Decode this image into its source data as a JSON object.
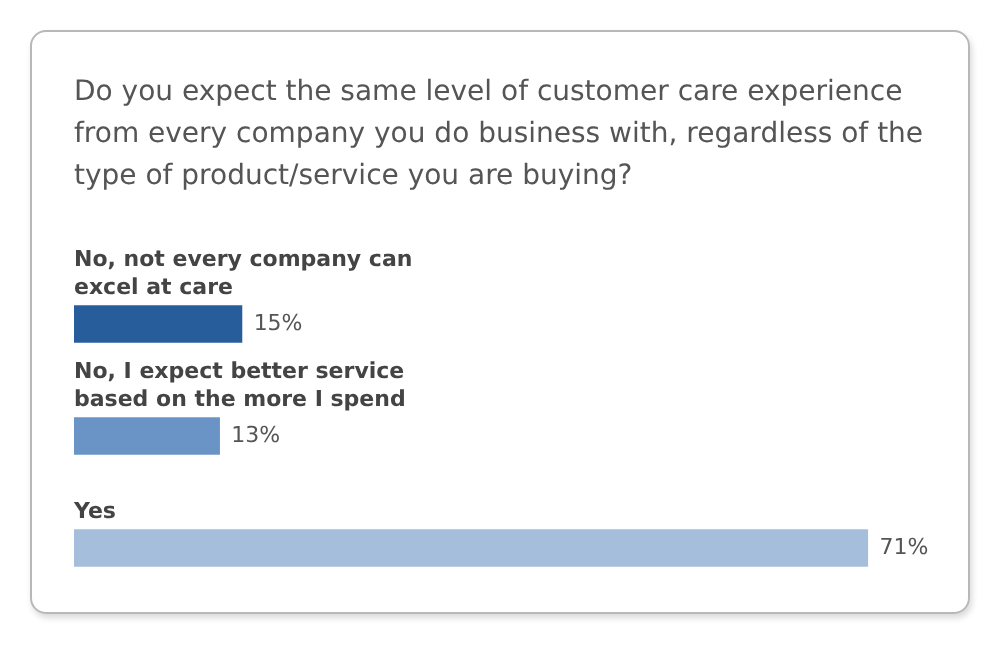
{
  "chart_data": {
    "type": "bar",
    "orientation": "horizontal",
    "title": "Do you expect the same level of customer care experience from every company you do business with, regardless of the type of product/service you are buying?",
    "categories": [
      "No, not every company can excel at care",
      "No, I expect better service based on the more I spend",
      "Yes"
    ],
    "values": [
      15,
      13,
      71
    ],
    "colors": [
      "#285d9c",
      "#6a94c5",
      "#a5bedc"
    ],
    "value_labels": [
      "15%",
      "13%",
      "71%"
    ],
    "legend": false
  }
}
